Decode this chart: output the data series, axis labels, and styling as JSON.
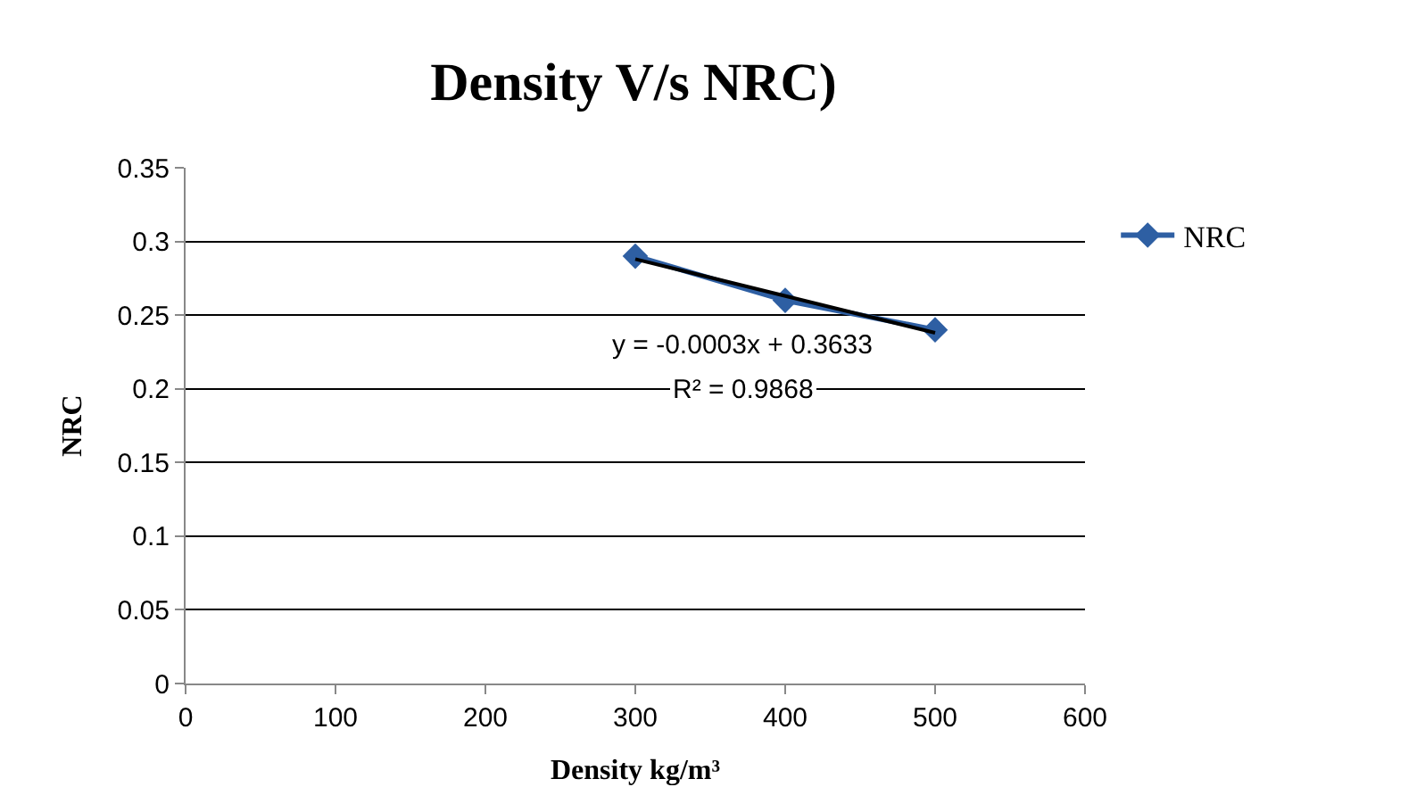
{
  "chart_data": {
    "type": "line",
    "title": "Density V/s NRC)",
    "xlabel": "Density kg/m³",
    "ylabel": "NRC",
    "x": [
      300,
      400,
      500
    ],
    "series": [
      {
        "name": "NRC",
        "color": "#2e5fa3",
        "values": [
          0.29,
          0.26,
          0.24
        ],
        "marker": "diamond"
      },
      {
        "type": "line",
        "color": "#000000",
        "x": [
          300,
          500
        ],
        "values": [
          0.288,
          0.238
        ],
        "marker": "none"
      }
    ],
    "annotations": [
      "y = -0.0003x + 0.3633",
      "R² = 0.9868"
    ],
    "xlim": [
      0,
      600
    ],
    "xticks": [
      0,
      100,
      200,
      300,
      400,
      500,
      600
    ],
    "ylim": [
      0,
      0.35
    ],
    "yticks": [
      0,
      0.05,
      0.1,
      0.15,
      0.2,
      0.25,
      0.3,
      0.35
    ],
    "grid": "y",
    "legend": "right",
    "line_style": "solid"
  }
}
